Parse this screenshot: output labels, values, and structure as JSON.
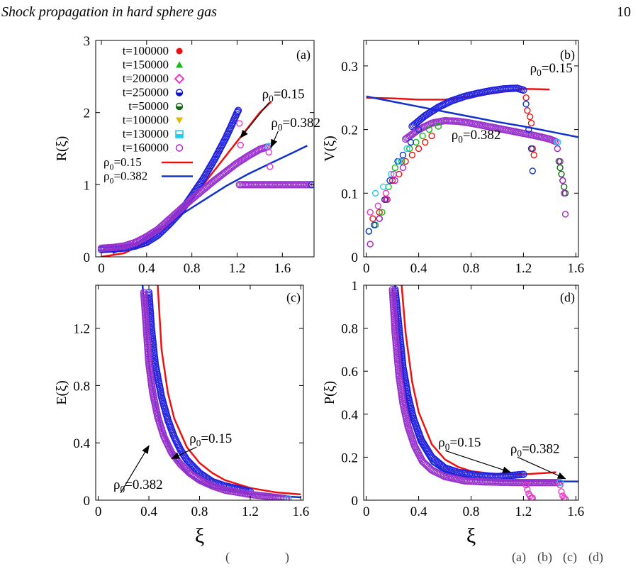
{
  "header": {
    "running_title": "Shock propagation in hard sphere gas",
    "page_number": "10"
  },
  "caption": {
    "fragments": [
      "(",
      ")",
      "(a)",
      "(b)",
      "(c)",
      "(d)"
    ]
  },
  "legend": [
    {
      "label": "t=100000",
      "color": "#ee1111",
      "marker": "circle-filled"
    },
    {
      "label": "t=150000",
      "color": "#11bb11",
      "marker": "triangle-up"
    },
    {
      "label": "t=200000",
      "color": "#ee33cc",
      "marker": "diamond-open"
    },
    {
      "label": "t=250000",
      "color": "#1111cc",
      "marker": "half-circle"
    },
    {
      "label": "t=50000",
      "color": "#116611",
      "marker": "half-circle"
    },
    {
      "label": "t=100000",
      "color": "#ddbb00",
      "marker": "triangle-down"
    },
    {
      "label": "t=130000",
      "color": "#22ccee",
      "marker": "half-square"
    },
    {
      "label": "t=160000",
      "color": "#aa22cc",
      "marker": "circle-open"
    },
    {
      "label": "ρ0=0.15",
      "color": "#ee1111",
      "marker": "line"
    },
    {
      "label": "ρ0=0.382",
      "color": "#1133cc",
      "marker": "line"
    }
  ],
  "chart_data": [
    {
      "panel": "(a)",
      "type": "scatter",
      "ylabel": "R(ξ)",
      "xlabel": "",
      "xlim": [
        -0.05,
        1.88
      ],
      "ylim": [
        0,
        3
      ],
      "xticks": [
        "0",
        "0.4",
        "0.8",
        "1.2",
        "1.6"
      ],
      "yticks": [
        "0",
        "1",
        "2",
        "3"
      ],
      "annotations": [
        {
          "text": "ρ0=0.15",
          "x": 1.42,
          "y": 2.2,
          "arrow_to": [
            1.23,
            1.65
          ]
        },
        {
          "text": "ρ0=0.382",
          "x": 1.5,
          "y": 1.8,
          "arrow_to": [
            1.5,
            1.52
          ]
        }
      ],
      "series": [
        {
          "name": "ρ0=0.15",
          "kind": "line",
          "color": "#ee1111",
          "x": [
            0,
            0.2,
            0.4,
            0.6,
            0.8,
            1.0,
            1.2,
            1.3,
            1.4,
            1.5
          ],
          "y": [
            0.0,
            0.05,
            0.2,
            0.45,
            0.8,
            1.2,
            1.6,
            1.8,
            2.0,
            2.15
          ]
        },
        {
          "name": "ρ0=0.382",
          "kind": "line",
          "color": "#1133cc",
          "x": [
            0.1,
            0.3,
            0.5,
            0.7,
            0.9,
            1.1,
            1.3,
            1.5,
            1.7,
            1.82
          ],
          "y": [
            0.05,
            0.18,
            0.38,
            0.58,
            0.78,
            0.98,
            1.15,
            1.3,
            1.45,
            1.54
          ]
        },
        {
          "kind": "dense",
          "color": "#2222dd",
          "stroke": "#2222dd",
          "x": [
            0,
            0.1,
            0.2,
            0.3,
            0.4,
            0.5,
            0.6,
            0.7,
            0.8,
            0.9,
            1.0,
            1.05,
            1.1,
            1.15,
            1.2,
            1.21
          ],
          "y": [
            0.1,
            0.11,
            0.12,
            0.15,
            0.2,
            0.3,
            0.45,
            0.62,
            0.85,
            1.08,
            1.35,
            1.5,
            1.65,
            1.82,
            2.0,
            2.03
          ]
        },
        {
          "kind": "dense",
          "color": "#9933cc",
          "stroke": "#22ccee",
          "x": [
            0,
            0.1,
            0.2,
            0.3,
            0.4,
            0.5,
            0.6,
            0.7,
            0.8,
            0.9,
            1.0,
            1.1,
            1.2,
            1.3,
            1.4,
            1.48
          ],
          "y": [
            0.12,
            0.13,
            0.15,
            0.2,
            0.28,
            0.38,
            0.52,
            0.66,
            0.8,
            0.93,
            1.06,
            1.18,
            1.3,
            1.4,
            1.49,
            1.53
          ]
        },
        {
          "kind": "dense",
          "color": "#9933cc",
          "stroke": "#1133cc",
          "x": [
            1.22,
            1.3,
            1.4,
            1.5,
            1.6,
            1.7,
            1.8,
            1.86
          ],
          "y": [
            1.0,
            1.0,
            1.0,
            1.0,
            1.0,
            1.0,
            1.0,
            1.0
          ]
        },
        {
          "kind": "points",
          "color": "#ee33cc",
          "x": [
            1.22,
            1.23,
            1.48,
            1.49
          ],
          "y": [
            1.85,
            1.55,
            1.45,
            1.25
          ]
        }
      ]
    },
    {
      "panel": "(b)",
      "type": "scatter",
      "ylabel": "V(ξ)",
      "xlabel": "",
      "xlim": [
        -0.02,
        1.62
      ],
      "ylim": [
        0,
        0.34
      ],
      "xticks": [
        "0",
        "0.4",
        "0.8",
        "1.2",
        "1.6"
      ],
      "yticks": [
        "0",
        "0.1",
        "0.2",
        "0.3"
      ],
      "annotations": [
        {
          "text": "ρ0=0.15",
          "x": 1.25,
          "y": 0.29,
          "arrow_to": null
        },
        {
          "text": "ρ0=0.382",
          "x": 0.65,
          "y": 0.185,
          "arrow_to": null
        }
      ],
      "series": [
        {
          "name": "ρ0=0.15",
          "kind": "line",
          "color": "#ee1111",
          "x": [
            0,
            0.2,
            0.4,
            0.6,
            0.8,
            1.0,
            1.2,
            1.4
          ],
          "y": [
            0.25,
            0.249,
            0.247,
            0.247,
            0.252,
            0.258,
            0.264,
            0.263
          ]
        },
        {
          "name": "ρ0=0.382",
          "kind": "line",
          "color": "#1133cc",
          "x": [
            0,
            0.2,
            0.4,
            0.6,
            0.8,
            1.0,
            1.2,
            1.4,
            1.62
          ],
          "y": [
            0.252,
            0.244,
            0.236,
            0.228,
            0.22,
            0.212,
            0.205,
            0.197,
            0.188
          ]
        },
        {
          "kind": "dense",
          "color": "#2222dd",
          "stroke": "#2222dd",
          "x": [
            0.35,
            0.45,
            0.55,
            0.65,
            0.75,
            0.85,
            0.95,
            1.05,
            1.15,
            1.2
          ],
          "y": [
            0.205,
            0.222,
            0.235,
            0.245,
            0.252,
            0.257,
            0.261,
            0.264,
            0.265,
            0.262
          ]
        },
        {
          "kind": "dense",
          "color": "#9933cc",
          "stroke": "#22ccee",
          "x": [
            0.3,
            0.4,
            0.5,
            0.6,
            0.7,
            0.8,
            0.9,
            1.0,
            1.1,
            1.2,
            1.3,
            1.4,
            1.46
          ],
          "y": [
            0.185,
            0.2,
            0.21,
            0.214,
            0.213,
            0.21,
            0.206,
            0.202,
            0.198,
            0.194,
            0.19,
            0.185,
            0.18
          ]
        },
        {
          "kind": "points",
          "color": "#ee1111",
          "x": [
            0.05,
            0.1,
            0.15,
            0.2,
            0.25,
            0.3,
            0.35,
            0.4,
            0.45,
            0.5
          ],
          "y": [
            0.06,
            0.07,
            0.09,
            0.12,
            0.13,
            0.15,
            0.16,
            0.17,
            0.18,
            0.19
          ]
        },
        {
          "kind": "points",
          "color": "#11bb11",
          "x": [
            0.02,
            0.07,
            0.12,
            0.17,
            0.22,
            0.27,
            0.33,
            0.38,
            0.43,
            0.48,
            0.55
          ],
          "y": [
            0.04,
            0.05,
            0.07,
            0.11,
            0.14,
            0.15,
            0.17,
            0.18,
            0.19,
            0.2,
            0.205
          ]
        },
        {
          "kind": "points",
          "color": "#1133cc",
          "x": [
            0.02,
            0.06,
            0.1,
            0.14,
            0.18,
            0.24,
            0.28,
            0.34,
            0.4
          ],
          "y": [
            0.04,
            0.05,
            0.06,
            0.09,
            0.12,
            0.15,
            0.16,
            0.18,
            0.2
          ]
        },
        {
          "kind": "points",
          "color": "#22ccee",
          "x": [
            0.07,
            0.13,
            0.19,
            0.25,
            0.31
          ],
          "y": [
            0.1,
            0.11,
            0.13,
            0.15,
            0.17
          ]
        },
        {
          "kind": "points",
          "color": "#ee33cc",
          "x": [
            0.03,
            0.09,
            0.15,
            0.21
          ],
          "y": [
            0.07,
            0.08,
            0.1,
            0.13
          ]
        },
        {
          "kind": "points",
          "color": "#aa22cc",
          "x": [
            0.03,
            0.1,
            0.16,
            0.22,
            0.28
          ],
          "y": [
            0.02,
            0.06,
            0.09,
            0.12,
            0.14
          ]
        },
        {
          "kind": "points",
          "color": "#ee1111",
          "x": [
            1.22,
            1.23,
            1.25,
            1.26,
            1.27,
            1.28
          ],
          "y": [
            0.25,
            0.23,
            0.22,
            0.21,
            0.17,
            0.16
          ]
        },
        {
          "kind": "points",
          "color": "#1133cc",
          "x": [
            1.22,
            1.24,
            1.26,
            1.27
          ],
          "y": [
            0.24,
            0.2,
            0.17,
            0.135
          ]
        },
        {
          "kind": "points",
          "color": "#116611",
          "x": [
            1.47,
            1.48,
            1.49,
            1.5,
            1.51,
            1.52
          ],
          "y": [
            0.15,
            0.14,
            0.13,
            0.12,
            0.11,
            0.1
          ]
        },
        {
          "kind": "points",
          "color": "#aa22cc",
          "x": [
            1.46,
            1.48,
            1.5,
            1.51,
            1.52
          ],
          "y": [
            0.17,
            0.15,
            0.12,
            0.1,
            0.067
          ]
        }
      ]
    },
    {
      "panel": "(c)",
      "type": "scatter",
      "ylabel": "E(ξ)",
      "xlabel": "ξ",
      "xlim": [
        -0.02,
        1.62
      ],
      "ylim": [
        0,
        1.5
      ],
      "xticks": [
        "0",
        "0.4",
        "0.8",
        "1.2",
        "1.6"
      ],
      "yticks": [
        "0",
        "0.4",
        "0.8",
        "1.2"
      ],
      "annotations": [
        {
          "text": "ρ0=0.15",
          "x": 0.72,
          "y": 0.4,
          "arrow_to": [
            0.58,
            0.29
          ]
        },
        {
          "text": "ρ0=0.382",
          "x": 0.12,
          "y": 0.08,
          "arrow_to": [
            0.4,
            0.38
          ]
        }
      ],
      "series": [
        {
          "name": "ρ0=0.15",
          "kind": "line",
          "color": "#ee1111",
          "x": [
            0.47,
            0.5,
            0.55,
            0.6,
            0.7,
            0.8,
            0.9,
            1.0,
            1.2,
            1.4,
            1.6
          ],
          "y": [
            1.5,
            1.05,
            0.75,
            0.57,
            0.37,
            0.26,
            0.19,
            0.14,
            0.085,
            0.055,
            0.04
          ]
        },
        {
          "name": "ρ0=0.382",
          "kind": "line",
          "color": "#1133cc",
          "x": [
            0.35,
            0.4,
            0.45,
            0.5,
            0.6,
            0.7,
            0.8,
            0.9,
            1.0,
            1.2,
            1.4,
            1.6
          ],
          "y": [
            1.5,
            0.95,
            0.68,
            0.5,
            0.3,
            0.19,
            0.13,
            0.09,
            0.07,
            0.045,
            0.03,
            0.02
          ]
        },
        {
          "kind": "dense",
          "color": "#2222dd",
          "stroke": "#2222dd",
          "x": [
            0.4,
            0.42,
            0.45,
            0.5,
            0.55,
            0.6,
            0.65,
            0.7,
            0.8,
            0.9,
            1.0,
            1.1,
            1.2
          ],
          "y": [
            1.45,
            1.2,
            0.95,
            0.72,
            0.56,
            0.44,
            0.35,
            0.28,
            0.19,
            0.13,
            0.1,
            0.08,
            0.06
          ]
        },
        {
          "kind": "dense",
          "color": "#9933cc",
          "stroke": "#22ccee",
          "x": [
            0.36,
            0.38,
            0.4,
            0.43,
            0.47,
            0.52,
            0.58,
            0.65,
            0.72,
            0.8,
            0.9,
            1.0,
            1.2,
            1.4,
            1.5
          ],
          "y": [
            1.45,
            1.2,
            0.95,
            0.75,
            0.58,
            0.44,
            0.33,
            0.25,
            0.19,
            0.14,
            0.1,
            0.07,
            0.04,
            0.02,
            0.01
          ]
        }
      ]
    },
    {
      "panel": "(d)",
      "type": "scatter",
      "ylabel": "P(ξ)",
      "xlabel": "ξ",
      "xlim": [
        -0.02,
        1.62
      ],
      "ylim": [
        0,
        1.0
      ],
      "xticks": [
        "0",
        "0.4",
        "0.8",
        "1.2",
        "1.6"
      ],
      "yticks": [
        "0",
        "0.2",
        "0.4",
        "0.6",
        "0.8",
        "1"
      ],
      "annotations": [
        {
          "text": "ρ0=0.15",
          "x": 0.55,
          "y": 0.25,
          "arrow_to": [
            1.1,
            0.13
          ]
        },
        {
          "text": "ρ0=0.382",
          "x": 1.1,
          "y": 0.22,
          "arrow_to": [
            1.52,
            0.1
          ]
        }
      ],
      "series": [
        {
          "name": "ρ0=0.15",
          "kind": "line",
          "color": "#ee1111",
          "x": [
            0.27,
            0.3,
            0.35,
            0.4,
            0.5,
            0.6,
            0.7,
            0.8,
            1.0,
            1.2,
            1.45
          ],
          "y": [
            1.0,
            0.78,
            0.55,
            0.41,
            0.26,
            0.19,
            0.155,
            0.135,
            0.12,
            0.12,
            0.13
          ]
        },
        {
          "name": "ρ0=0.382",
          "kind": "line",
          "color": "#1133cc",
          "x": [
            0.22,
            0.25,
            0.3,
            0.35,
            0.4,
            0.5,
            0.6,
            0.8,
            1.0,
            1.2,
            1.4,
            1.62
          ],
          "y": [
            1.0,
            0.75,
            0.5,
            0.36,
            0.27,
            0.17,
            0.13,
            0.1,
            0.09,
            0.088,
            0.087,
            0.087
          ]
        },
        {
          "kind": "dense",
          "color": "#2222dd",
          "stroke": "#2222dd",
          "x": [
            0.22,
            0.25,
            0.28,
            0.32,
            0.36,
            0.42,
            0.5,
            0.6,
            0.7,
            0.85,
            1.0,
            1.1,
            1.2
          ],
          "y": [
            0.98,
            0.8,
            0.62,
            0.48,
            0.38,
            0.28,
            0.2,
            0.15,
            0.13,
            0.115,
            0.11,
            0.115,
            0.12
          ]
        },
        {
          "kind": "dense",
          "color": "#9933cc",
          "stroke": "#22ccee",
          "x": [
            0.2,
            0.22,
            0.25,
            0.28,
            0.32,
            0.37,
            0.43,
            0.5,
            0.6,
            0.75,
            0.9,
            1.05,
            1.2,
            1.35,
            1.48
          ],
          "y": [
            0.98,
            0.78,
            0.58,
            0.45,
            0.34,
            0.25,
            0.18,
            0.14,
            0.11,
            0.09,
            0.085,
            0.083,
            0.082,
            0.082,
            0.082
          ]
        },
        {
          "kind": "points",
          "color": "#ee33cc",
          "x": [
            1.22,
            1.23,
            1.24,
            1.25,
            1.26,
            1.27,
            1.48,
            1.49,
            1.5,
            1.51,
            1.52
          ],
          "y": [
            0.07,
            0.05,
            0.03,
            0.02,
            0.01,
            0.01,
            0.07,
            0.04,
            0.02,
            0.01,
            0.005
          ]
        }
      ]
    }
  ]
}
